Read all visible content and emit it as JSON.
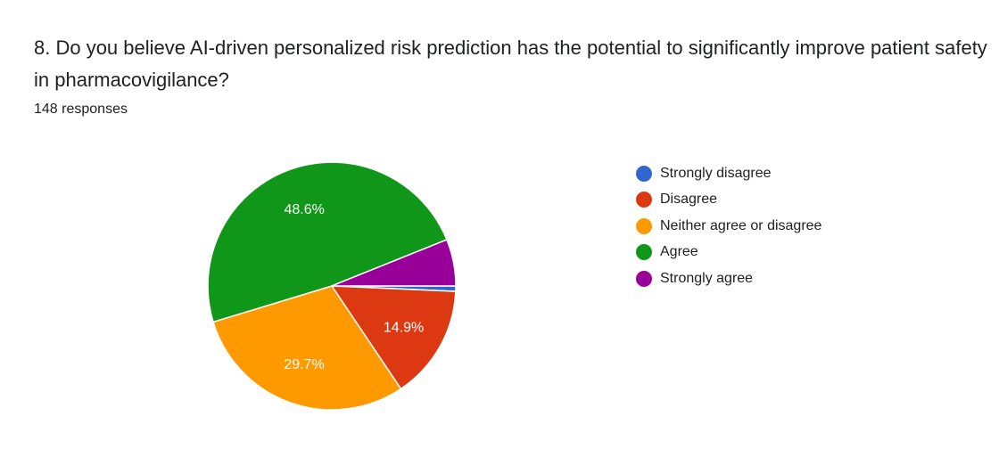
{
  "question": {
    "title": "8. Do you believe AI-driven personalized risk prediction has the potential to significantly improve patient safety in pharmacovigilance?",
    "responses": "148 responses"
  },
  "chart_data": {
    "type": "pie",
    "title": "8. Do you believe AI-driven personalized risk prediction has the potential to significantly improve patient safety in pharmacovigilance?",
    "total_responses": 148,
    "legend_position": "right",
    "slices": [
      {
        "label": "Strongly disagree",
        "value": 0.7,
        "color": "#3366cc",
        "display": ""
      },
      {
        "label": "Disagree",
        "value": 14.9,
        "color": "#dc3912",
        "display": "14.9%"
      },
      {
        "label": "Neither agree or disagree",
        "value": 29.7,
        "color": "#ff9900",
        "display": "29.7%"
      },
      {
        "label": "Agree",
        "value": 48.6,
        "color": "#109618",
        "display": "48.6%"
      },
      {
        "label": "Strongly agree",
        "value": 6.1,
        "color": "#990099",
        "display": ""
      }
    ]
  }
}
